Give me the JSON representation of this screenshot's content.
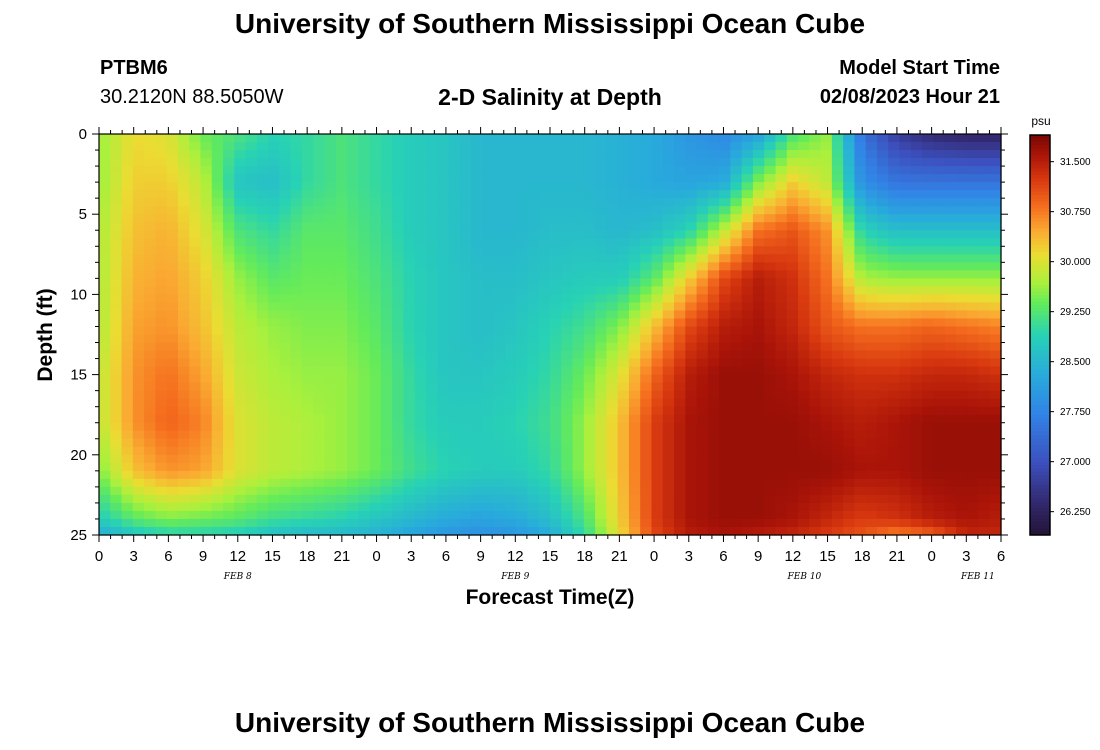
{
  "header": {
    "title": "University of Southern Mississippi Ocean Cube",
    "station_id": "PTBM6",
    "station_coords": "30.2120N  88.5050W",
    "plot_title": "2-D Salinity at Depth",
    "model_start_label": "Model Start Time",
    "model_start_value": "02/08/2023 Hour 21"
  },
  "footer": {
    "title": "University of Southern Mississippi Ocean Cube"
  },
  "chart_data": {
    "type": "heatmap",
    "title": "2-D Salinity at Depth",
    "xlabel": "Forecast Time(Z)",
    "ylabel": "Depth (ft)",
    "x_tick_labels": [
      "0",
      "3",
      "6",
      "9",
      "12",
      "15",
      "18",
      "21",
      "0",
      "3",
      "6",
      "9",
      "12",
      "15",
      "18",
      "21",
      "0",
      "3",
      "6",
      "9",
      "12",
      "15",
      "18",
      "21",
      "0",
      "3",
      "6"
    ],
    "date_labels": [
      {
        "label": "FEB 8",
        "hour": 12
      },
      {
        "label": "FEB 9",
        "hour": 36
      },
      {
        "label": "FEB 10",
        "hour": 61
      },
      {
        "label": "FEB 11",
        "hour": 76
      }
    ],
    "xlim_hours": [
      0,
      78
    ],
    "ylim": [
      0,
      25
    ],
    "y_ticks": [
      0,
      5,
      10,
      15,
      20,
      25
    ],
    "y_inverted": true,
    "colorbar": {
      "unit": "psu",
      "min": 25.9,
      "max": 31.9,
      "ticks": [
        "31.500",
        "30.750",
        "30.000",
        "29.250",
        "28.500",
        "27.750",
        "27.000",
        "26.250"
      ],
      "tick_values": [
        31.5,
        30.75,
        30.0,
        29.25,
        28.5,
        27.75,
        27.0,
        26.25
      ]
    },
    "grid_x_hours": [
      0,
      3,
      6,
      9,
      12,
      15,
      18,
      21,
      24,
      27,
      30,
      33,
      36,
      39,
      42,
      45,
      48,
      51,
      54,
      57,
      60,
      63,
      66,
      69,
      72,
      75,
      78
    ],
    "grid_depths_ft": [
      0,
      3,
      6,
      9,
      12,
      15,
      18,
      21,
      24,
      25
    ],
    "values": [
      [
        29.6,
        30.1,
        30.0,
        29.4,
        29.2,
        28.9,
        29.0,
        29.2,
        29.0,
        28.8,
        28.7,
        28.5,
        28.5,
        28.5,
        28.5,
        28.4,
        28.3,
        28.0,
        27.8,
        28.2,
        29.2,
        29.6,
        27.5,
        26.7,
        26.4,
        26.3,
        26.3
      ],
      [
        29.6,
        30.2,
        30.2,
        29.8,
        28.7,
        28.6,
        29.0,
        29.2,
        29.0,
        28.8,
        28.7,
        28.5,
        28.5,
        28.5,
        28.5,
        28.4,
        28.3,
        28.2,
        28.3,
        29.5,
        30.2,
        29.8,
        27.9,
        27.5,
        27.5,
        27.5,
        27.5
      ],
      [
        29.7,
        30.3,
        30.4,
        30.0,
        29.2,
        29.0,
        29.3,
        29.3,
        29.1,
        28.8,
        28.7,
        28.5,
        28.5,
        28.6,
        28.6,
        28.5,
        28.6,
        28.9,
        29.8,
        30.8,
        31.0,
        30.6,
        28.9,
        28.6,
        28.6,
        28.6,
        28.6
      ],
      [
        29.7,
        30.4,
        30.5,
        30.2,
        29.6,
        29.3,
        29.4,
        29.4,
        29.2,
        28.9,
        28.7,
        28.6,
        28.6,
        28.7,
        28.8,
        28.8,
        29.3,
        30.2,
        31.1,
        31.5,
        31.3,
        30.8,
        29.7,
        29.6,
        29.6,
        29.6,
        29.6
      ],
      [
        29.7,
        30.5,
        30.6,
        30.3,
        29.8,
        29.6,
        29.5,
        29.5,
        29.3,
        28.9,
        28.7,
        28.6,
        28.7,
        28.9,
        29.1,
        29.5,
        30.3,
        31.1,
        31.5,
        31.6,
        31.4,
        31.0,
        30.8,
        30.8,
        30.9,
        30.8,
        30.7
      ],
      [
        29.8,
        30.6,
        30.8,
        30.5,
        29.9,
        29.7,
        29.6,
        29.6,
        29.4,
        29.0,
        28.7,
        28.7,
        28.8,
        29.0,
        29.4,
        30.0,
        30.9,
        31.5,
        31.7,
        31.7,
        31.6,
        31.4,
        31.3,
        31.3,
        31.4,
        31.4,
        31.3
      ],
      [
        29.8,
        30.6,
        30.9,
        30.7,
        30.0,
        29.8,
        29.7,
        29.6,
        29.4,
        29.0,
        28.8,
        28.8,
        28.9,
        29.1,
        29.6,
        30.3,
        31.2,
        31.6,
        31.7,
        31.7,
        31.7,
        31.6,
        31.5,
        31.6,
        31.7,
        31.7,
        31.7
      ],
      [
        29.5,
        30.3,
        30.6,
        30.5,
        30.0,
        29.8,
        29.7,
        29.6,
        29.4,
        29.1,
        28.9,
        28.8,
        28.8,
        29.0,
        29.6,
        30.3,
        31.2,
        31.6,
        31.7,
        31.7,
        31.7,
        31.7,
        31.6,
        31.6,
        31.7,
        31.7,
        31.7
      ],
      [
        28.8,
        29.3,
        29.5,
        29.4,
        29.3,
        29.1,
        29.0,
        28.9,
        28.7,
        28.5,
        28.3,
        28.2,
        28.3,
        28.6,
        29.2,
        30.2,
        31.2,
        31.6,
        31.7,
        31.7,
        31.6,
        31.4,
        31.2,
        31.3,
        31.5,
        31.6,
        31.5
      ],
      [
        28.3,
        28.7,
        28.9,
        28.9,
        28.8,
        28.6,
        28.5,
        28.5,
        28.4,
        28.2,
        28.0,
        27.9,
        28.0,
        28.3,
        29.0,
        30.1,
        31.1,
        31.5,
        31.6,
        31.5,
        31.4,
        31.2,
        31.0,
        30.7,
        30.9,
        31.4,
        31.4
      ]
    ]
  }
}
